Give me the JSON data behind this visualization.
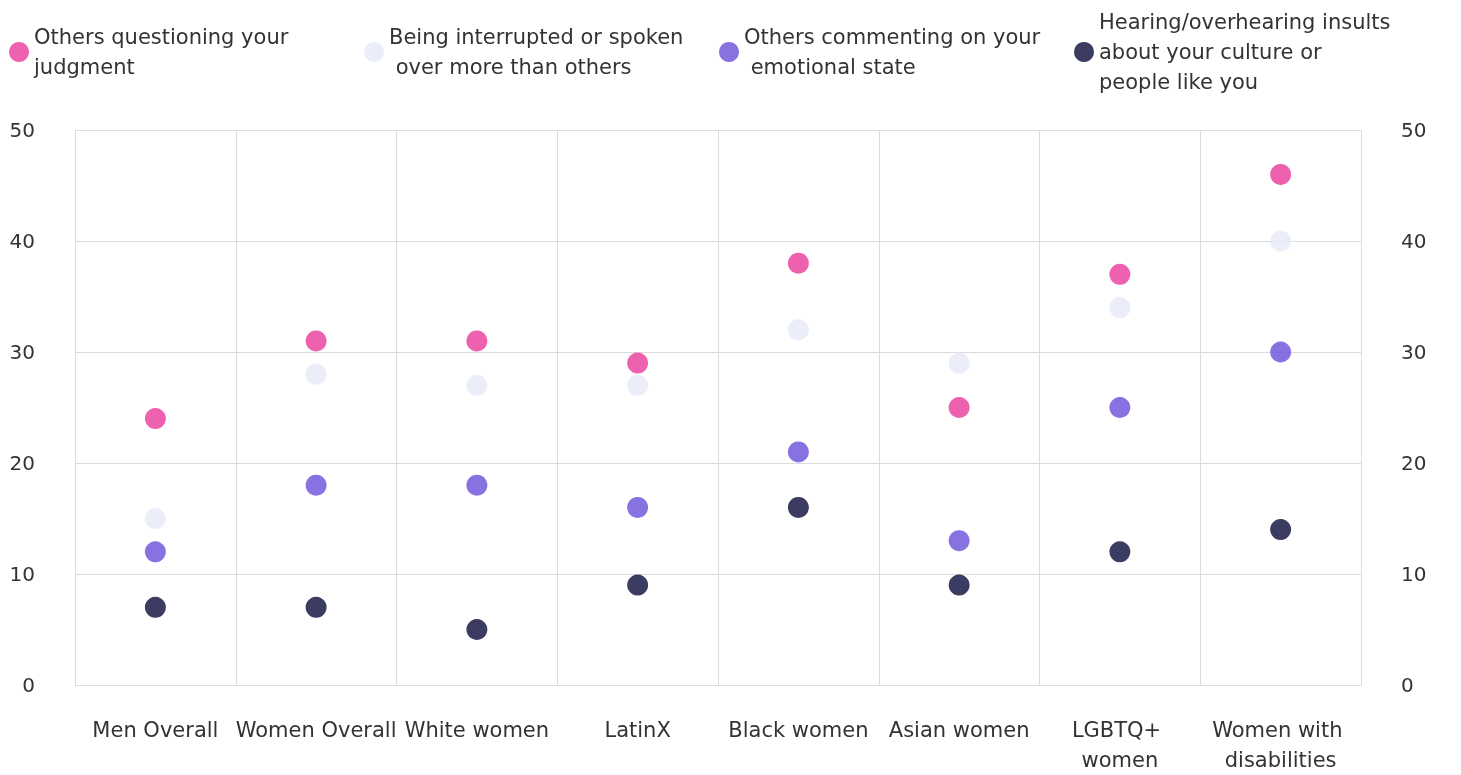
{
  "chart_data": {
    "type": "scatter",
    "categories": [
      "Men Overall",
      "Women Overall",
      "White women",
      "LatinX",
      "Black women",
      "Asian women",
      "LGBTQ+ women",
      "Women with disabilities"
    ],
    "series": [
      {
        "name": "Others questioning your judgment",
        "color": "#e8399a",
        "values": [
          24,
          31,
          31,
          29,
          38,
          25,
          37,
          46
        ]
      },
      {
        "name": "Being interrupted or spoken over more than others",
        "color": "#e6e9f8",
        "values": [
          15,
          28,
          27,
          27,
          32,
          29,
          34,
          40
        ]
      },
      {
        "name": "Others commenting on your emotional state",
        "color": "#6a4fdb",
        "values": [
          12,
          18,
          18,
          16,
          21,
          13,
          25,
          30
        ]
      },
      {
        "name": "Hearing/overhearing insults about your culture or people like you",
        "color": "#0b0a3a",
        "values": [
          7,
          7,
          5,
          9,
          16,
          9,
          12,
          14
        ]
      }
    ],
    "ylim": [
      0,
      50
    ],
    "yticks": [
      0,
      10,
      20,
      30,
      40,
      50
    ],
    "y2lim": [
      0,
      50
    ],
    "y2ticks": [
      0,
      10,
      20,
      30,
      40,
      50
    ],
    "grid": true,
    "legend": "top",
    "marker": "circle"
  }
}
